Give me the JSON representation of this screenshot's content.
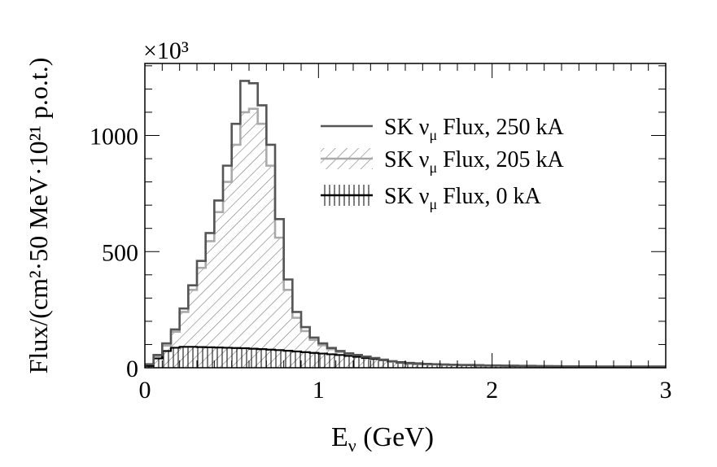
{
  "chart_data": {
    "type": "histogram",
    "xlabel_main": "E",
    "xlabel_sub": "ν",
    "xlabel_rest": " (GeV)",
    "ylabel": "Flux/(cm²·50 MeV·10²¹ p.o.t.)",
    "y_multiplier": "×10³",
    "xlim": [
      0,
      3
    ],
    "ylim": [
      0,
      1310
    ],
    "x_ticks": [
      "0",
      "1",
      "2",
      "3"
    ],
    "y_ticks": [
      "0",
      "500",
      "1000"
    ],
    "bin_width": 0.05,
    "legend_position": "top-right",
    "series": [
      {
        "name_prefix": "SK ν",
        "name_sub": "μ",
        "name_suffix": " Flux, 250 kA",
        "color": "#555555",
        "fill": "none",
        "values": [
          15,
          55,
          105,
          165,
          255,
          355,
          460,
          580,
          720,
          870,
          1050,
          1235,
          1225,
          1130,
          960,
          640,
          380,
          240,
          175,
          130,
          105,
          85,
          72,
          62,
          55,
          48,
          42,
          35,
          28,
          22,
          19,
          17,
          16,
          15,
          14,
          13,
          12,
          12,
          11,
          10,
          10,
          9,
          9,
          8,
          8,
          7,
          7,
          7,
          6,
          6,
          6,
          6,
          5,
          5,
          5,
          5,
          5,
          5,
          5,
          5
        ]
      },
      {
        "name_prefix": "SK ν",
        "name_sub": "μ",
        "name_suffix": " Flux, 205 kA",
        "color": "#aaaaaa",
        "fill": "diagonal-hatch",
        "values": [
          14,
          50,
          95,
          155,
          240,
          335,
          430,
          545,
          670,
          800,
          960,
          1100,
          1115,
          1050,
          870,
          560,
          335,
          215,
          158,
          120,
          97,
          80,
          68,
          58,
          51,
          45,
          39,
          33,
          26,
          21,
          18,
          16,
          15,
          14,
          13,
          12,
          11,
          11,
          10,
          9,
          9,
          8,
          8,
          7,
          7,
          7,
          6,
          6,
          6,
          5,
          5,
          5,
          5,
          5,
          5,
          5,
          5,
          5,
          5,
          5
        ]
      },
      {
        "name_prefix": "SK ν",
        "name_sub": "μ",
        "name_suffix": " Flux, 0 kA",
        "color": "#000000",
        "fill": "vertical-hatch",
        "values": [
          8,
          40,
          72,
          86,
          90,
          90,
          89,
          88,
          87,
          86,
          85,
          84,
          82,
          80,
          78,
          76,
          73,
          70,
          67,
          64,
          61,
          58,
          55,
          51,
          47,
          42,
          38,
          33,
          28,
          24,
          21,
          19,
          17,
          15,
          14,
          13,
          12,
          11,
          10,
          10,
          9,
          9,
          8,
          8,
          7,
          7,
          7,
          6,
          6,
          6,
          6,
          5,
          5,
          5,
          5,
          5,
          5,
          5,
          5,
          5
        ]
      }
    ]
  }
}
